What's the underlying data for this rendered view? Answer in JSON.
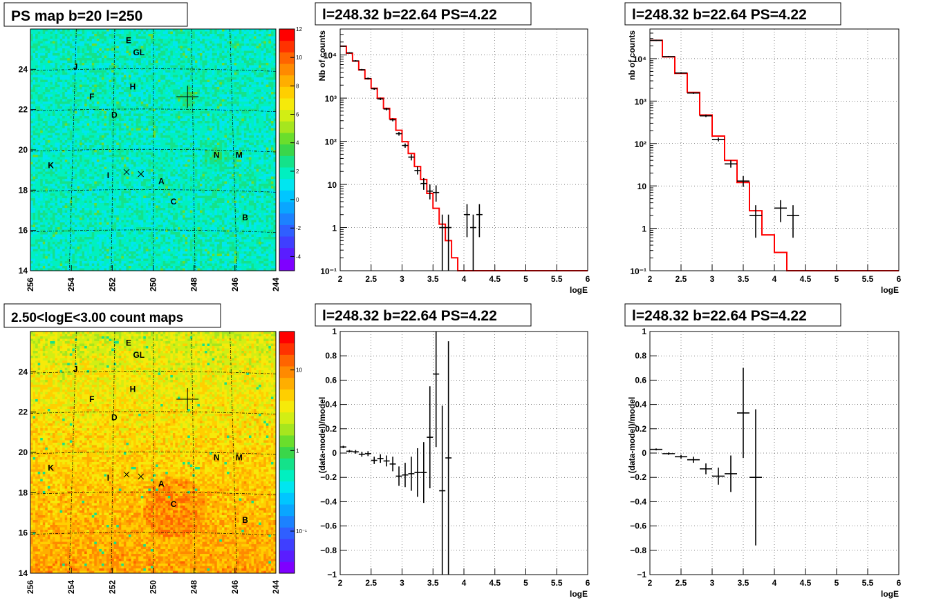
{
  "chart_data": [
    {
      "id": "ps_map",
      "type": "heatmap",
      "title": "PS map b=20 l=250",
      "xlim": [
        256,
        244
      ],
      "ylim": [
        14,
        26
      ],
      "x_ticks": [
        "256",
        "254",
        "252",
        "250",
        "248",
        "246",
        "244"
      ],
      "y_ticks": [
        "14",
        "16",
        "18",
        "20",
        "22",
        "24"
      ],
      "colorbar": {
        "scale": "linear",
        "min": -5,
        "max": 12,
        "ticks": [
          "12",
          "10",
          "8",
          "6",
          "4",
          "2",
          "0",
          "-2",
          "-4"
        ]
      },
      "grid": true,
      "labels": [
        {
          "text": "E",
          "l": 251.2,
          "b": 25.3
        },
        {
          "text": "GL",
          "l": 250.7,
          "b": 24.7
        },
        {
          "text": "J",
          "l": 253.8,
          "b": 24.0
        },
        {
          "text": "H",
          "l": 251.0,
          "b": 23.0
        },
        {
          "text": "F",
          "l": 253.0,
          "b": 22.5
        },
        {
          "text": "D",
          "l": 251.9,
          "b": 21.6
        },
        {
          "text": "N",
          "l": 246.9,
          "b": 19.6
        },
        {
          "text": "M",
          "l": 245.8,
          "b": 19.6
        },
        {
          "text": "K",
          "l": 255.0,
          "b": 19.1
        },
        {
          "text": "I",
          "l": 252.2,
          "b": 18.6
        },
        {
          "text": "A",
          "l": 249.6,
          "b": 18.3
        },
        {
          "text": "C",
          "l": 249.0,
          "b": 17.3
        },
        {
          "text": "B",
          "l": 245.5,
          "b": 16.5
        }
      ],
      "markers": [
        {
          "l": 251.3,
          "b": 18.9
        },
        {
          "l": 250.6,
          "b": 18.8
        }
      ],
      "target": {
        "l": 248.32,
        "b": 22.64
      }
    },
    {
      "id": "count_map",
      "type": "heatmap",
      "title": "2.50<logE<3.00 count maps",
      "xlim": [
        256,
        244
      ],
      "ylim": [
        14,
        26
      ],
      "x_ticks": [
        "256",
        "254",
        "252",
        "250",
        "248",
        "246",
        "244"
      ],
      "y_ticks": [
        "14",
        "16",
        "18",
        "20",
        "22",
        "24"
      ],
      "colorbar": {
        "scale": "log",
        "min": 0.03,
        "max": 30,
        "ticks": [
          "10",
          "1",
          "10⁻¹"
        ]
      },
      "grid": true,
      "labels": [
        {
          "text": "E",
          "l": 251.2,
          "b": 25.3
        },
        {
          "text": "GL",
          "l": 250.7,
          "b": 24.7
        },
        {
          "text": "J",
          "l": 253.8,
          "b": 24.0
        },
        {
          "text": "H",
          "l": 251.0,
          "b": 23.0
        },
        {
          "text": "F",
          "l": 253.0,
          "b": 22.5
        },
        {
          "text": "D",
          "l": 251.9,
          "b": 21.6
        },
        {
          "text": "N",
          "l": 246.9,
          "b": 19.6
        },
        {
          "text": "M",
          "l": 245.8,
          "b": 19.6
        },
        {
          "text": "K",
          "l": 255.0,
          "b": 19.1
        },
        {
          "text": "I",
          "l": 252.2,
          "b": 18.6
        },
        {
          "text": "A",
          "l": 249.6,
          "b": 18.3
        },
        {
          "text": "C",
          "l": 249.0,
          "b": 17.3
        },
        {
          "text": "B",
          "l": 245.5,
          "b": 16.5
        }
      ],
      "markers": [
        {
          "l": 251.3,
          "b": 18.9
        },
        {
          "l": 250.6,
          "b": 18.8
        }
      ],
      "target": {
        "l": 248.32,
        "b": 22.64
      }
    },
    {
      "id": "spec_fine",
      "type": "line",
      "title": "l=248.32 b=22.64 PS=4.22",
      "xlabel": "logE",
      "ylabel": "Nb of counts",
      "xlim": [
        2,
        6
      ],
      "ylim": [
        0.1,
        40000
      ],
      "yscale": "log",
      "x_ticks": [
        "2",
        "2.5",
        "3",
        "3.5",
        "4",
        "4.5",
        "5",
        "5.5",
        "6"
      ],
      "y_ticks": [
        {
          "v": 0.1,
          "t": "10⁻¹"
        },
        {
          "v": 1,
          "t": "1"
        },
        {
          "v": 10,
          "t": "10"
        },
        {
          "v": 100,
          "t": "10²"
        },
        {
          "v": 1000,
          "t": "10³"
        },
        {
          "v": 10000,
          "t": "10⁴"
        }
      ],
      "grid": true,
      "model": {
        "edges": [
          2,
          2.1,
          2.2,
          2.3,
          2.4,
          2.5,
          2.6,
          2.7,
          2.8,
          2.9,
          3.0,
          3.1,
          3.2,
          3.3,
          3.4,
          3.5,
          3.6,
          3.7,
          3.8,
          3.9,
          4.0,
          4.1,
          4.2,
          6.0
        ],
        "values": [
          16000,
          11000,
          7200,
          4500,
          2800,
          1700,
          1000,
          580,
          330,
          180,
          98,
          52,
          26,
          13,
          6.2,
          2.8,
          1.2,
          0.5,
          0.2,
          0.1,
          0.1,
          0.1,
          0.1
        ]
      },
      "points": [
        {
          "x": 2.05,
          "y": 16000,
          "dx": 0.05,
          "lo": 15500,
          "hi": 16500
        },
        {
          "x": 2.15,
          "y": 11200,
          "dx": 0.05,
          "lo": 10800,
          "hi": 11600
        },
        {
          "x": 2.25,
          "y": 7300,
          "dx": 0.05,
          "lo": 7000,
          "hi": 7600
        },
        {
          "x": 2.35,
          "y": 4550,
          "dx": 0.05,
          "lo": 4350,
          "hi": 4750
        },
        {
          "x": 2.45,
          "y": 2850,
          "dx": 0.05,
          "lo": 2700,
          "hi": 3000
        },
        {
          "x": 2.55,
          "y": 1650,
          "dx": 0.05,
          "lo": 1560,
          "hi": 1740
        },
        {
          "x": 2.65,
          "y": 960,
          "dx": 0.05,
          "lo": 900,
          "hi": 1020
        },
        {
          "x": 2.75,
          "y": 560,
          "dx": 0.05,
          "lo": 520,
          "hi": 600
        },
        {
          "x": 2.85,
          "y": 315,
          "dx": 0.05,
          "lo": 290,
          "hi": 340
        },
        {
          "x": 2.95,
          "y": 150,
          "dx": 0.05,
          "lo": 135,
          "hi": 165
        },
        {
          "x": 3.05,
          "y": 80,
          "dx": 0.05,
          "lo": 71,
          "hi": 89
        },
        {
          "x": 3.15,
          "y": 43,
          "dx": 0.05,
          "lo": 36,
          "hi": 50
        },
        {
          "x": 3.25,
          "y": 21,
          "dx": 0.05,
          "lo": 17,
          "hi": 26
        },
        {
          "x": 3.35,
          "y": 10.5,
          "dx": 0.05,
          "lo": 7.5,
          "hi": 14
        },
        {
          "x": 3.45,
          "y": 7,
          "dx": 0.05,
          "lo": 4.5,
          "hi": 10
        },
        {
          "x": 3.55,
          "y": 6.5,
          "dx": 0.05,
          "lo": 4,
          "hi": 9.5
        },
        {
          "x": 3.65,
          "y": 1,
          "dx": 0.05,
          "lo": 0.1,
          "hi": 2
        },
        {
          "x": 3.75,
          "y": 1,
          "dx": 0.05,
          "lo": 0.1,
          "hi": 2
        },
        {
          "x": 4.05,
          "y": 2,
          "dx": 0.05,
          "lo": 0.6,
          "hi": 3.5
        },
        {
          "x": 4.15,
          "y": 1,
          "dx": 0.05,
          "lo": 0.1,
          "hi": 2
        },
        {
          "x": 4.25,
          "y": 2,
          "dx": 0.05,
          "lo": 0.6,
          "hi": 3.5
        }
      ]
    },
    {
      "id": "spec_coarse",
      "type": "line",
      "title": "l=248.32 b=22.64 PS=4.22",
      "xlabel": "logE",
      "ylabel": "nb of counts",
      "xlim": [
        2,
        6
      ],
      "ylim": [
        0.1,
        50000
      ],
      "yscale": "log",
      "x_ticks": [
        "2",
        "2.5",
        "3",
        "3.5",
        "4",
        "4.5",
        "5",
        "5.5",
        "6"
      ],
      "y_ticks": [
        {
          "v": 0.1,
          "t": "10⁻¹"
        },
        {
          "v": 1,
          "t": "1"
        },
        {
          "v": 10,
          "t": "10"
        },
        {
          "v": 100,
          "t": "10²"
        },
        {
          "v": 1000,
          "t": "10³"
        },
        {
          "v": 10000,
          "t": "10⁴"
        }
      ],
      "grid": true,
      "model": {
        "edges": [
          2,
          2.2,
          2.4,
          2.6,
          2.8,
          3.0,
          3.2,
          3.4,
          3.6,
          3.8,
          4.0,
          4.2,
          6.0
        ],
        "values": [
          27000,
          11000,
          4500,
          1600,
          470,
          150,
          40,
          12,
          2.6,
          0.7,
          0.27,
          0.1
        ]
      },
      "points": [
        {
          "x": 2.1,
          "y": 27000,
          "dx": 0.1,
          "lo": 26000,
          "hi": 28000
        },
        {
          "x": 2.3,
          "y": 11200,
          "dx": 0.1,
          "lo": 10800,
          "hi": 11600
        },
        {
          "x": 2.5,
          "y": 4600,
          "dx": 0.1,
          "lo": 4400,
          "hi": 4800
        },
        {
          "x": 2.7,
          "y": 1550,
          "dx": 0.1,
          "lo": 1480,
          "hi": 1620
        },
        {
          "x": 2.9,
          "y": 450,
          "dx": 0.1,
          "lo": 420,
          "hi": 480
        },
        {
          "x": 3.1,
          "y": 125,
          "dx": 0.1,
          "lo": 112,
          "hi": 138
        },
        {
          "x": 3.3,
          "y": 33,
          "dx": 0.1,
          "lo": 27,
          "hi": 40
        },
        {
          "x": 3.5,
          "y": 13,
          "dx": 0.1,
          "lo": 9.5,
          "hi": 17
        },
        {
          "x": 3.7,
          "y": 2,
          "dx": 0.1,
          "lo": 0.6,
          "hi": 3.5
        },
        {
          "x": 4.1,
          "y": 3,
          "dx": 0.1,
          "lo": 1.4,
          "hi": 4.6
        },
        {
          "x": 4.3,
          "y": 2,
          "dx": 0.1,
          "lo": 0.6,
          "hi": 3.5
        }
      ]
    },
    {
      "id": "resid_fine",
      "type": "scatter",
      "title": "l=248.32 b=22.64 PS=4.22",
      "xlabel": "logE",
      "ylabel": "(data-model)/model",
      "xlim": [
        2,
        6
      ],
      "ylim": [
        -1,
        1
      ],
      "x_ticks": [
        "2",
        "2.5",
        "3",
        "3.5",
        "4",
        "4.5",
        "5",
        "5.5",
        "6"
      ],
      "y_ticks": [
        "-1",
        "-0.8",
        "-0.6",
        "-0.4",
        "-0.2",
        "0",
        "0.2",
        "0.4",
        "0.6",
        "0.8",
        "1"
      ],
      "grid": true,
      "points": [
        {
          "x": 2.05,
          "y": 0.05,
          "dx": 0.05,
          "e": 0.01
        },
        {
          "x": 2.15,
          "y": 0.015,
          "dx": 0.05,
          "e": 0.01
        },
        {
          "x": 2.25,
          "y": 0.01,
          "dx": 0.05,
          "e": 0.015
        },
        {
          "x": 2.35,
          "y": -0.01,
          "dx": 0.05,
          "e": 0.02
        },
        {
          "x": 2.45,
          "y": -0.005,
          "dx": 0.05,
          "e": 0.02
        },
        {
          "x": 2.55,
          "y": -0.06,
          "dx": 0.05,
          "e": 0.03
        },
        {
          "x": 2.65,
          "y": -0.045,
          "dx": 0.05,
          "e": 0.035
        },
        {
          "x": 2.75,
          "y": -0.065,
          "dx": 0.05,
          "e": 0.045
        },
        {
          "x": 2.85,
          "y": -0.09,
          "dx": 0.05,
          "e": 0.06
        },
        {
          "x": 2.95,
          "y": -0.19,
          "dx": 0.05,
          "e": 0.08
        },
        {
          "x": 3.05,
          "y": -0.18,
          "dx": 0.05,
          "e": 0.1
        },
        {
          "x": 3.15,
          "y": -0.17,
          "dx": 0.05,
          "e": 0.14
        },
        {
          "x": 3.25,
          "y": -0.16,
          "dx": 0.05,
          "e": 0.2
        },
        {
          "x": 3.35,
          "y": -0.16,
          "dx": 0.05,
          "e": 0.25
        },
        {
          "x": 3.45,
          "y": 0.13,
          "dx": 0.05,
          "e": 0.42
        },
        {
          "x": 3.55,
          "y": 0.65,
          "dx": 0.05,
          "e": 0.6
        },
        {
          "x": 3.65,
          "y": -0.31,
          "dx": 0.05,
          "e": 0.7
        },
        {
          "x": 3.75,
          "y": -0.04,
          "dx": 0.05,
          "e": 0.96
        }
      ]
    },
    {
      "id": "resid_coarse",
      "type": "scatter",
      "title": "l=248.32 b=22.64 PS=4.22",
      "xlabel": "logE",
      "ylabel": "(data-model)/model",
      "xlim": [
        2,
        6
      ],
      "ylim": [
        -1,
        1
      ],
      "x_ticks": [
        "2",
        "2.5",
        "3",
        "3.5",
        "4",
        "4.5",
        "5",
        "5.5",
        "6"
      ],
      "y_ticks": [
        "-1",
        "-0.8",
        "-0.6",
        "-0.4",
        "-0.2",
        "0",
        "0.2",
        "0.4",
        "0.6",
        "0.8",
        "1"
      ],
      "grid": true,
      "points": [
        {
          "x": 2.1,
          "y": 0.03,
          "dx": 0.1,
          "e": 0.008
        },
        {
          "x": 2.3,
          "y": -0.005,
          "dx": 0.1,
          "e": 0.01
        },
        {
          "x": 2.5,
          "y": -0.03,
          "dx": 0.1,
          "e": 0.015
        },
        {
          "x": 2.7,
          "y": -0.055,
          "dx": 0.1,
          "e": 0.025
        },
        {
          "x": 2.9,
          "y": -0.13,
          "dx": 0.1,
          "e": 0.045
        },
        {
          "x": 3.1,
          "y": -0.19,
          "dx": 0.1,
          "e": 0.07
        },
        {
          "x": 3.3,
          "y": -0.17,
          "dx": 0.1,
          "e": 0.15
        },
        {
          "x": 3.5,
          "y": 0.33,
          "dx": 0.1,
          "e": 0.37
        },
        {
          "x": 3.7,
          "y": -0.2,
          "dx": 0.1,
          "e": 0.56
        }
      ]
    }
  ]
}
